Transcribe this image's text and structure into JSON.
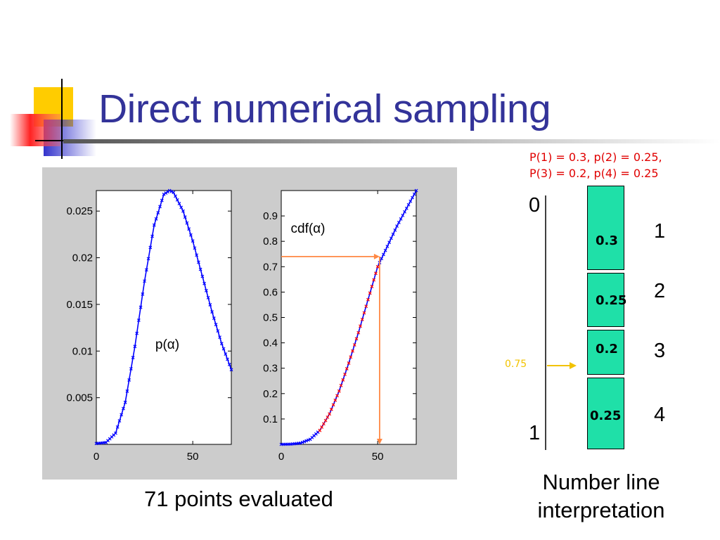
{
  "title": "Direct numerical sampling",
  "captions": {
    "left": "71 points evaluated",
    "right_line1": "Number line",
    "right_line2": "interpretation"
  },
  "probabilities": {
    "line1": "P(1) = 0.3, p(2) = 0.25,",
    "line2": "P(3) = 0.2, p(4) = 0.25"
  },
  "number_line": {
    "top_label": "0",
    "bottom_label": "1",
    "marker_value": "0.75",
    "boxes": [
      {
        "label": "0.3",
        "index": "1"
      },
      {
        "label": "0.25",
        "index": "2"
      },
      {
        "label": "0.2",
        "index": "3"
      },
      {
        "label": "0.25",
        "index": "4"
      }
    ]
  },
  "colors": {
    "title": "#333399",
    "curve": "#0000ff",
    "cdf_marks": "#ff0000",
    "guide": "#ff8844",
    "box_fill": "#1fe0a8",
    "marker": "#f2c300",
    "prob_text": "#e00000"
  },
  "chart_data": [
    {
      "type": "line",
      "title": "",
      "annotation": "p(α)",
      "x_ticks": [
        "0",
        "50"
      ],
      "y_ticks": [
        "0.005",
        "0.01",
        "0.015",
        "0.02",
        "0.025"
      ],
      "xlim": [
        0,
        70
      ],
      "ylim": [
        0,
        0.0272
      ],
      "series": [
        {
          "x": [
            0,
            5,
            10,
            15,
            20,
            25,
            30,
            35,
            38,
            40,
            45,
            50,
            55,
            60,
            65,
            70
          ],
          "y": [
            0.0001,
            0.0002,
            0.0012,
            0.0045,
            0.0105,
            0.0175,
            0.0235,
            0.0268,
            0.0272,
            0.027,
            0.025,
            0.0218,
            0.018,
            0.0142,
            0.0108,
            0.008
          ]
        }
      ]
    },
    {
      "type": "line",
      "title": "",
      "annotation": "cdf(α)",
      "x_ticks": [
        "0",
        "50"
      ],
      "y_ticks": [
        "0.1",
        "0.2",
        "0.3",
        "0.4",
        "0.5",
        "0.6",
        "0.7",
        "0.8",
        "0.9"
      ],
      "xlim": [
        0,
        70
      ],
      "ylim": [
        0,
        1
      ],
      "lookup": {
        "y": 0.74,
        "x": 51
      },
      "series": [
        {
          "x": [
            0,
            5,
            10,
            15,
            20,
            25,
            30,
            35,
            40,
            45,
            50,
            55,
            60,
            65,
            70
          ],
          "y": [
            0.0,
            0.001,
            0.005,
            0.02,
            0.055,
            0.12,
            0.21,
            0.32,
            0.44,
            0.57,
            0.7,
            0.78,
            0.86,
            0.93,
            1.0
          ]
        }
      ]
    }
  ]
}
